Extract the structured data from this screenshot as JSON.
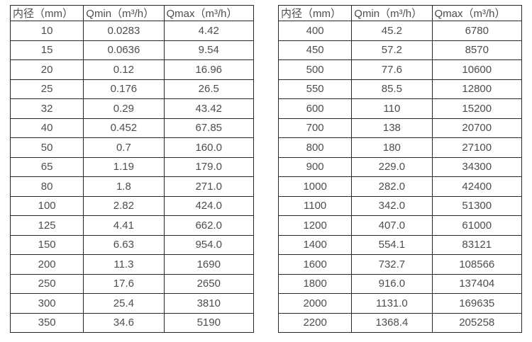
{
  "page": {
    "background_color": "#ffffff",
    "border_color": "#262626",
    "text_color": "#4d4d4d"
  },
  "tables": [
    {
      "name": "flow-table-small-diameters",
      "headers": [
        "内径（mm）",
        "Qmin（m³/h）",
        "Qmax（m³/h）"
      ],
      "rows": [
        [
          "10",
          "0.0283",
          "4.42"
        ],
        [
          "15",
          "0.0636",
          "9.54"
        ],
        [
          "20",
          "0.12",
          "16.96"
        ],
        [
          "25",
          "0.176",
          "26.5"
        ],
        [
          "32",
          "0.29",
          "43.42"
        ],
        [
          "40",
          "0.452",
          "67.85"
        ],
        [
          "50",
          "0.7",
          "160.0"
        ],
        [
          "65",
          "1.19",
          "179.0"
        ],
        [
          "80",
          "1.8",
          "271.0"
        ],
        [
          "100",
          "2.82",
          "424.0"
        ],
        [
          "125",
          "4.41",
          "662.0"
        ],
        [
          "150",
          "6.63",
          "954.0"
        ],
        [
          "200",
          "11.3",
          "1690"
        ],
        [
          "250",
          "17.6",
          "2650"
        ],
        [
          "300",
          "25.4",
          "3810"
        ],
        [
          "350",
          "34.6",
          "5190"
        ]
      ]
    },
    {
      "name": "flow-table-large-diameters",
      "headers": [
        "内径（mm）",
        "Qmin（m³/h）",
        "Qmax（m³/h）"
      ],
      "rows": [
        [
          "400",
          "45.2",
          "6780"
        ],
        [
          "450",
          "57.2",
          "8570"
        ],
        [
          "500",
          "77.6",
          "10600"
        ],
        [
          "550",
          "85.5",
          "12800"
        ],
        [
          "600",
          "110",
          "15200"
        ],
        [
          "700",
          "138",
          "20700"
        ],
        [
          "800",
          "180",
          "27100"
        ],
        [
          "900",
          "229.0",
          "34300"
        ],
        [
          "1000",
          "282.0",
          "42400"
        ],
        [
          "1100",
          "342.0",
          "51300"
        ],
        [
          "1200",
          "407.0",
          "61000"
        ],
        [
          "1400",
          "554.1",
          "83121"
        ],
        [
          "1600",
          "732.7",
          "108566"
        ],
        [
          "1800",
          "916.0",
          "137404"
        ],
        [
          "2000",
          "1131.0",
          "169635"
        ],
        [
          "2200",
          "1368.4",
          "205258"
        ]
      ]
    }
  ]
}
